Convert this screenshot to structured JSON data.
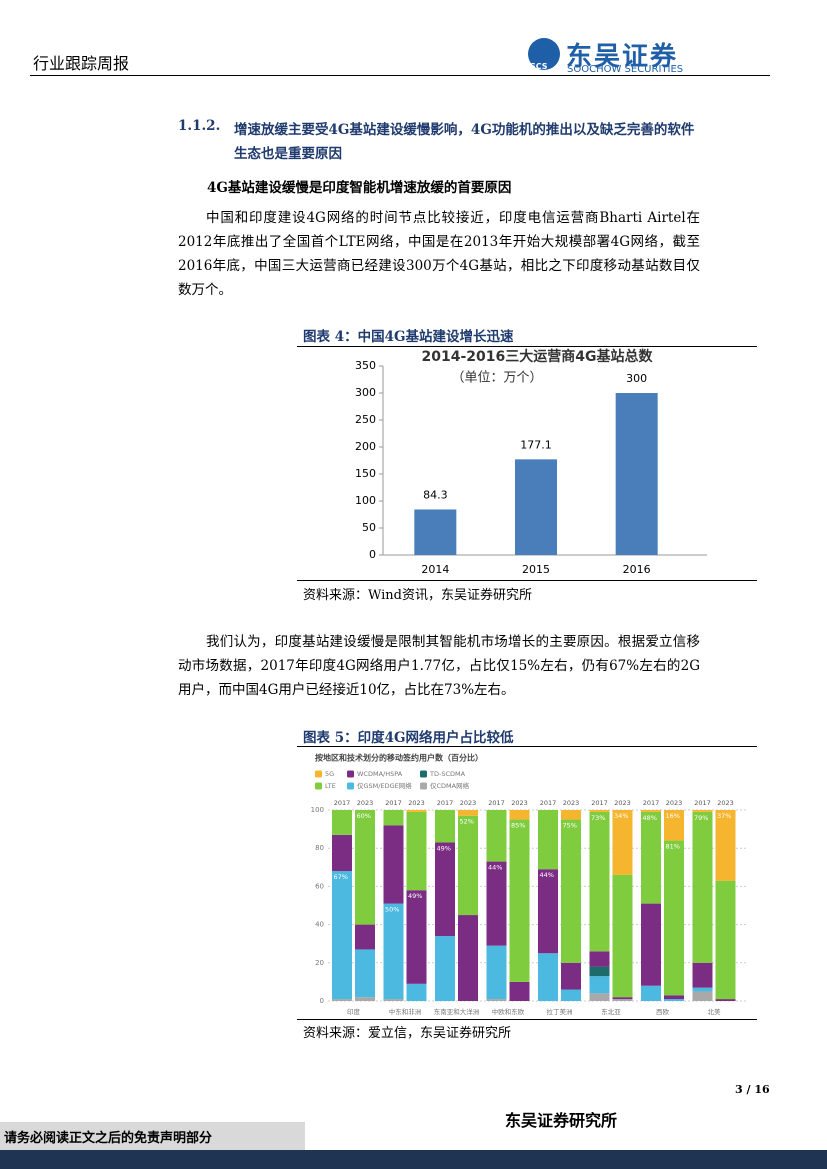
{
  "header": {
    "title": "行业跟踪周报",
    "logo_abbr": "SCS",
    "logo_name": "东吴证券",
    "logo_en": "SOOCHOW SECURITIES"
  },
  "section": {
    "number": "1.1.2.",
    "title": "增速放缓主要受4G基站建设缓慢影响，4G功能机的推出以及缺乏完善的软件生态也是重要原因",
    "subtitle": "4G基站建设缓慢是印度智能机增速放缓的首要原因"
  },
  "paragraphs": [
    "中国和印度建设4G网络的时间节点比较接近，印度电信运营商Bharti Airtel在2012年底推出了全国首个LTE网络，中国是在2013年开始大规模部署4G网络，截至2016年底，中国三大运营商已经建设300万个4G基站，相比之下印度移动基站数目仅数万个。",
    "我们认为，印度基站建设缓慢是限制其智能机市场增长的主要原因。根据爱立信移动市场数据，2017年印度4G网络用户1.77亿，占比仅15%左右，仍有67%左右的2G用户，而中国4G用户已经接近10亿，占比在73%左右。"
  ],
  "figures": [
    {
      "caption": "图表 4：中国4G基站建设增长迅速",
      "source": "资料来源：Wind资讯，东吴证券研究所"
    },
    {
      "caption": "图表 5：印度4G网络用户占比较低",
      "source": "资料来源：爱立信，东吴证券研究所"
    }
  ],
  "chart_data": [
    {
      "type": "bar",
      "title": "2014-2016三大运营商4G基站总数",
      "subtitle": "（单位：万个）",
      "categories": [
        "2014",
        "2015",
        "2016"
      ],
      "values": [
        84.3,
        177.1,
        300
      ],
      "color": "#4a7ebb",
      "ylim": [
        0,
        350
      ],
      "yticks": [
        0,
        50,
        100,
        150,
        200,
        250,
        300,
        350
      ],
      "grid": false
    },
    {
      "type": "stacked_bar",
      "title": "按地区和技术划分的移动签约用户数（百分比）",
      "groups": [
        "印度",
        "中东和非洲",
        "东南亚和大洋洲",
        "中欧和东欧",
        "拉丁美洲",
        "东北亚",
        "西欧",
        "北美"
      ],
      "categories": [
        "2017",
        "2023",
        "2017",
        "2023",
        "2017",
        "2023",
        "2017",
        "2023",
        "2017",
        "2023",
        "2017",
        "2023",
        "2017",
        "2023",
        "2017",
        "2023"
      ],
      "ylim": [
        0,
        100
      ],
      "yticks": [
        0,
        20,
        40,
        60,
        80,
        100
      ],
      "grid": true,
      "series": [
        {
          "name": "5G",
          "color": "#f5b52e",
          "values": [
            0,
            0,
            0,
            1,
            0,
            3,
            0,
            5,
            0,
            5,
            1,
            34,
            1,
            16,
            1,
            37
          ],
          "value_labels": [
            null,
            null,
            null,
            null,
            null,
            null,
            null,
            null,
            null,
            null,
            null,
            "34%",
            null,
            "16%",
            null,
            "37%"
          ]
        },
        {
          "name": "WCDMA/HSPA",
          "color": "#7b2c83",
          "values": [
            19,
            13,
            41,
            49,
            49,
            45,
            44,
            10,
            44,
            14,
            8,
            1,
            43,
            2,
            13,
            1
          ],
          "value_labels": [
            null,
            null,
            null,
            "49%",
            "49%",
            null,
            "44%",
            null,
            "44%",
            null,
            null,
            null,
            null,
            null,
            null,
            null
          ]
        },
        {
          "name": "TD-SCDMA",
          "color": "#1d6b6b",
          "values": [
            0,
            0,
            0,
            0,
            0,
            0,
            0,
            0,
            0,
            0,
            5,
            0,
            0,
            0,
            0,
            0
          ]
        },
        {
          "name": "LTE",
          "color": "#7fcc3f",
          "values": [
            13,
            60,
            8,
            41,
            17,
            52,
            27,
            85,
            31,
            75,
            73,
            64,
            48,
            81,
            79,
            62
          ],
          "value_labels": [
            null,
            "60%",
            null,
            null,
            null,
            "52%",
            null,
            "85%",
            null,
            "75%",
            "73%",
            null,
            "48%",
            "81%",
            "79%",
            null
          ]
        },
        {
          "name": "仅GSM/EDGE网络",
          "color": "#4cb9e1",
          "values": [
            67,
            25,
            50,
            9,
            34,
            0,
            28,
            0,
            25,
            6,
            9,
            0,
            8,
            1,
            2,
            0
          ],
          "value_labels": [
            "67%",
            null,
            "50%",
            null,
            null,
            null,
            null,
            null,
            null,
            null,
            null,
            null,
            null,
            null,
            null,
            null
          ]
        },
        {
          "name": "仅CDMA网络",
          "color": "#a9a9a9",
          "values": [
            1,
            2,
            1,
            0,
            0,
            0,
            1,
            0,
            0,
            0,
            4,
            1,
            0,
            0,
            5,
            0
          ]
        }
      ]
    }
  ],
  "footer": {
    "page": "3 / 16",
    "org": "东吴证券研究所",
    "disclaimer": "请务必阅读正文之后的免责声明部分"
  }
}
